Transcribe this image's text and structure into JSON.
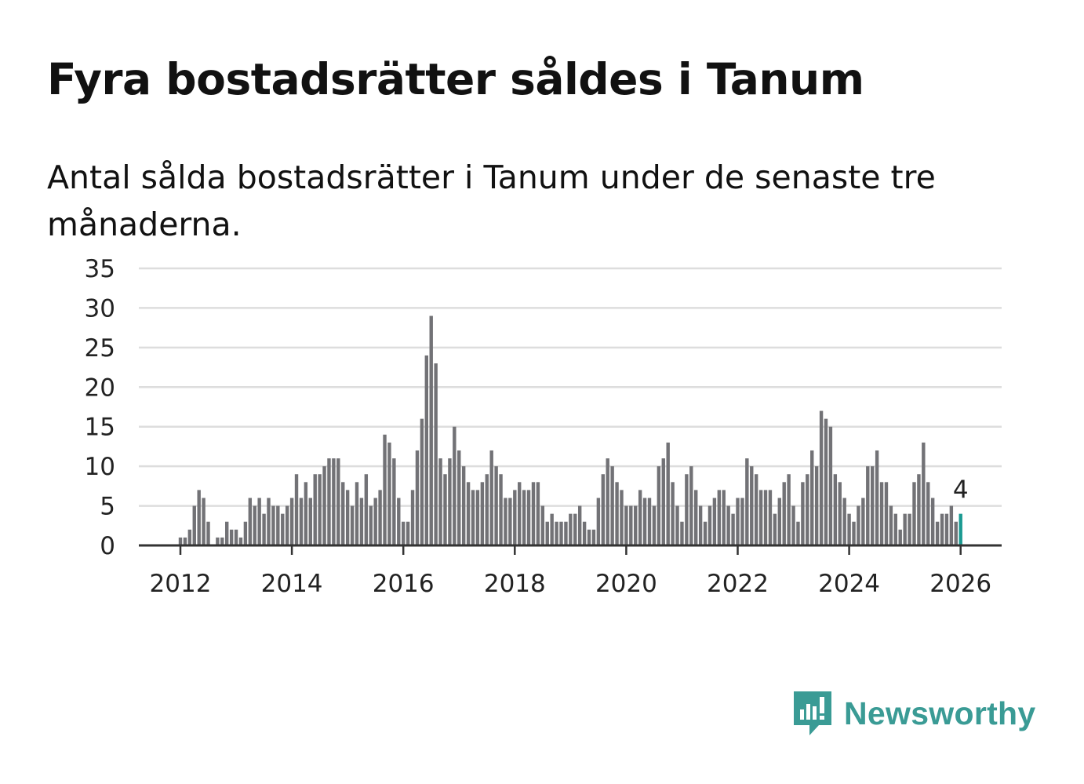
{
  "header": {
    "title": "Fyra bostadsrätter såldes i Tanum",
    "subtitle": "Antal sålda bostadsrätter i Tanum under de senaste tre månaderna."
  },
  "brand": {
    "name": "Newsworthy",
    "icon": "newsworthy-logo-icon",
    "color": "#3a9b95"
  },
  "colors": {
    "bar": "#727276",
    "highlight": "#1b9a92",
    "grid": "#dddddd",
    "axis": "#333333"
  },
  "chart_data": {
    "type": "bar",
    "title": "Fyra bostadsrätter såldes i Tanum",
    "xlabel": "",
    "ylabel": "",
    "ylim": [
      0,
      35
    ],
    "yticks": [
      "0",
      "5",
      "10",
      "15",
      "20",
      "25",
      "30",
      "35"
    ],
    "xticks": [
      "2012",
      "2014",
      "2016",
      "2018",
      "2020",
      "2022",
      "2024",
      "2026"
    ],
    "start": "2011-01",
    "grid": true,
    "highlight_label": "4",
    "series": [
      {
        "name": "Antal sålda bostadsrätter",
        "values": [
          0,
          0,
          0,
          0,
          0,
          0,
          0,
          0,
          0,
          0,
          0,
          0,
          1,
          1,
          2,
          5,
          7,
          6,
          3,
          0,
          1,
          1,
          3,
          2,
          2,
          1,
          3,
          6,
          5,
          6,
          4,
          6,
          5,
          5,
          4,
          5,
          6,
          9,
          6,
          8,
          6,
          9,
          9,
          10,
          11,
          11,
          11,
          8,
          7,
          5,
          8,
          6,
          9,
          5,
          6,
          7,
          14,
          13,
          11,
          6,
          3,
          3,
          7,
          12,
          16,
          24,
          29,
          23,
          11,
          9,
          11,
          15,
          12,
          10,
          8,
          7,
          7,
          8,
          9,
          12,
          10,
          9,
          6,
          6,
          7,
          8,
          7,
          7,
          8,
          8,
          5,
          3,
          4,
          3,
          3,
          3,
          4,
          4,
          5,
          3,
          2,
          2,
          6,
          9,
          11,
          10,
          8,
          7,
          5,
          5,
          5,
          7,
          6,
          6,
          5,
          10,
          11,
          13,
          8,
          5,
          3,
          9,
          10,
          7,
          5,
          3,
          5,
          6,
          7,
          7,
          5,
          4,
          6,
          6,
          11,
          10,
          9,
          7,
          7,
          7,
          4,
          6,
          8,
          9,
          5,
          3,
          8,
          9,
          12,
          10,
          17,
          16,
          15,
          9,
          8,
          6,
          4,
          3,
          5,
          6,
          10,
          10,
          12,
          8,
          8,
          5,
          4,
          2,
          4,
          4,
          8,
          9,
          13,
          8,
          6,
          3,
          4,
          4,
          5,
          3,
          4
        ]
      }
    ]
  }
}
